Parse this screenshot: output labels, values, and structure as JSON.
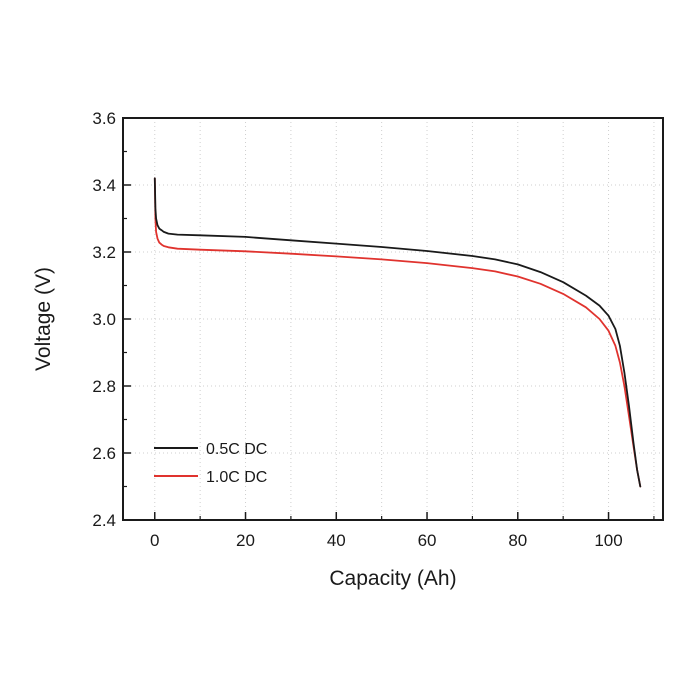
{
  "chart_data": {
    "type": "line",
    "title": "",
    "xlabel": "Capacity (Ah)",
    "ylabel": "Voltage (V)",
    "xlim": [
      -7,
      112
    ],
    "ylim": [
      2.4,
      3.6
    ],
    "xticks": [
      0,
      20,
      40,
      60,
      80,
      100
    ],
    "yticks": [
      2.4,
      2.6,
      2.8,
      3.0,
      3.2,
      3.4,
      3.6
    ],
    "xtick_labels": [
      "0",
      "20",
      "40",
      "60",
      "80",
      "100"
    ],
    "ytick_labels": [
      "2.4",
      "2.6",
      "2.8",
      "3.0",
      "3.2",
      "3.4",
      "3.6"
    ],
    "grid": true,
    "legend_position": "bottom-left",
    "series": [
      {
        "name": "0.5C DC",
        "color": "#1a1a1a",
        "x": [
          0,
          0.15,
          0.3,
          0.6,
          1,
          1.5,
          2,
          3,
          5,
          10,
          20,
          30,
          40,
          50,
          60,
          70,
          75,
          80,
          85,
          90,
          95,
          98,
          100,
          101.5,
          102.5,
          103.5,
          104.5,
          105.5,
          106.3,
          107
        ],
        "y": [
          3.42,
          3.33,
          3.3,
          3.28,
          3.27,
          3.265,
          3.26,
          3.255,
          3.252,
          3.25,
          3.245,
          3.235,
          3.225,
          3.215,
          3.203,
          3.188,
          3.178,
          3.163,
          3.14,
          3.11,
          3.07,
          3.04,
          3.01,
          2.97,
          2.92,
          2.84,
          2.74,
          2.63,
          2.55,
          2.5
        ]
      },
      {
        "name": "1.0C DC",
        "color": "#e0332e",
        "x": [
          0,
          0.15,
          0.3,
          0.6,
          1,
          1.5,
          2,
          3,
          5,
          10,
          20,
          30,
          40,
          50,
          60,
          70,
          75,
          80,
          85,
          90,
          95,
          98,
          100,
          101.5,
          102.5,
          103.5,
          104.5,
          105.5,
          106.3,
          107
        ],
        "y": [
          3.42,
          3.3,
          3.26,
          3.24,
          3.228,
          3.222,
          3.218,
          3.214,
          3.21,
          3.207,
          3.202,
          3.195,
          3.187,
          3.178,
          3.167,
          3.152,
          3.142,
          3.127,
          3.105,
          3.075,
          3.035,
          3.0,
          2.965,
          2.92,
          2.87,
          2.8,
          2.71,
          2.62,
          2.55,
          2.5
        ]
      }
    ]
  }
}
